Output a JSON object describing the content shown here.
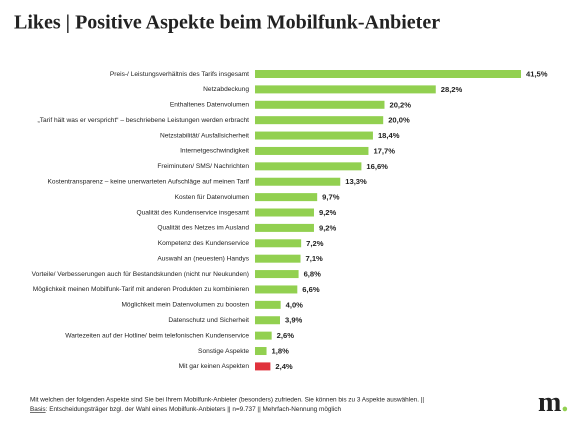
{
  "chart_data": {
    "type": "bar",
    "orientation": "horizontal",
    "title": "Likes | Positive Aspekte beim Mobilfunk-Anbieter",
    "categories": [
      "Preis-/ Leistungsverhältnis des Tarifs insgesamt",
      "Netzabdeckung",
      "Enthaltenes Datenvolumen",
      "„Tarif hält was er verspricht“ – beschriebene Leistungen werden erbracht",
      "Netzstabilität/ Ausfallsicherheit",
      "Internetgeschwindigkeit",
      "Freiminuten/ SMS/ Nachrichten",
      "Kostentransparenz – keine unerwarteten Aufschläge auf meinen Tarif",
      "Kosten für Datenvolumen",
      "Qualität des Kundenservice insgesamt",
      "Qualität des Netzes im Ausland",
      "Kompetenz des Kundenservice",
      "Auswahl an (neuesten) Handys",
      "Vorteile/ Verbesserungen auch für Bestandskunden (nicht nur Neukunden)",
      "Möglichkeit meinen Mobilfunk-Tarif mit anderen Produkten zu kombinieren",
      "Möglichkeit mein Datenvolumen zu boosten",
      "Datenschutz und Sicherheit",
      "Wartezeiten auf der Hotline/ beim telefonischen Kundenservice",
      "Sonstige Aspekte",
      "Mit gar keinen Aspekten"
    ],
    "values": [
      41.5,
      28.2,
      20.2,
      20.0,
      18.4,
      17.7,
      16.6,
      13.3,
      9.7,
      9.2,
      9.2,
      7.2,
      7.1,
      6.8,
      6.6,
      4.0,
      3.9,
      2.6,
      1.8,
      2.4
    ],
    "value_labels": [
      "41,5%",
      "28,2%",
      "20,2%",
      "20,0%",
      "18,4%",
      "17,7%",
      "16,6%",
      "13,3%",
      "9,7%",
      "9,2%",
      "9,2%",
      "7,2%",
      "7,1%",
      "6,8%",
      "6,6%",
      "4,0%",
      "3,9%",
      "2,6%",
      "1,8%",
      "2,4%"
    ],
    "colors": [
      "#92d050",
      "#92d050",
      "#92d050",
      "#92d050",
      "#92d050",
      "#92d050",
      "#92d050",
      "#92d050",
      "#92d050",
      "#92d050",
      "#92d050",
      "#92d050",
      "#92d050",
      "#92d050",
      "#92d050",
      "#92d050",
      "#92d050",
      "#92d050",
      "#92d050",
      "#e0323c"
    ]
  },
  "footnote": {
    "question": "Mit welchen der folgenden Aspekte sind Sie bei Ihrem Mobilfunk-Anbieter (besonders) zufrieden. Sie können bis zu 3 Aspekte auswählen. ||",
    "basis_label": "Basis",
    "basis_text": ": Entscheidungsträger bzgl. der Wahl eines Mobilfunk-Anbieters || n=9.737 || Mehrfach-Nennung möglich"
  },
  "logo": {
    "letter": "m",
    "dot": "."
  }
}
